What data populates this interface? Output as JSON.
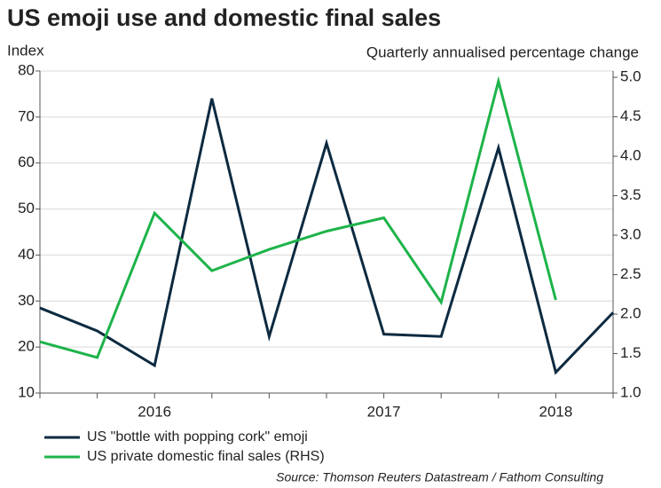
{
  "chart_data": {
    "type": "line",
    "title": "US emoji use and domestic final sales",
    "y_label": "Index",
    "y2_label": "Quarterly annualised percentage change",
    "source": "Source: Thomson Reuters Datastream / Fathom Consulting",
    "categories": [
      null,
      null,
      "2016",
      null,
      null,
      null,
      "2017",
      null,
      null,
      "2018",
      null
    ],
    "series": [
      {
        "name": "US \"bottle with popping cork\" emoji",
        "color": "#0d2a40",
        "axis": "y",
        "values": [
          28.5,
          23.5,
          16,
          74,
          22.3,
          64.3,
          22.8,
          22.3,
          63.3,
          14.5,
          27.5
        ]
      },
      {
        "name": "US private domestic final sales (RHS)",
        "color": "#1db34a",
        "axis": "y2",
        "values": [
          1.65,
          1.45,
          3.28,
          2.55,
          2.82,
          3.05,
          3.22,
          2.15,
          4.95,
          2.18,
          null
        ]
      }
    ],
    "ylim": [
      10,
      80
    ],
    "yticks": [
      10,
      20,
      30,
      40,
      50,
      60,
      70,
      80
    ],
    "y2lim": [
      1.0,
      5.08
    ],
    "y2ticks": [
      {
        "value": 1.0,
        "label": "1.0"
      },
      {
        "value": 1.5,
        "label": "1.5"
      },
      {
        "value": 2.0,
        "label": "2.0"
      },
      {
        "value": 2.5,
        "label": "2.5"
      },
      {
        "value": 3.0,
        "label": "3.0"
      },
      {
        "value": 3.5,
        "label": "3.5"
      },
      {
        "value": 4.0,
        "label": "4.0"
      },
      {
        "value": 4.5,
        "label": "4.5"
      },
      {
        "value": 5.0,
        "label": "5.0"
      }
    ],
    "grid": true
  }
}
